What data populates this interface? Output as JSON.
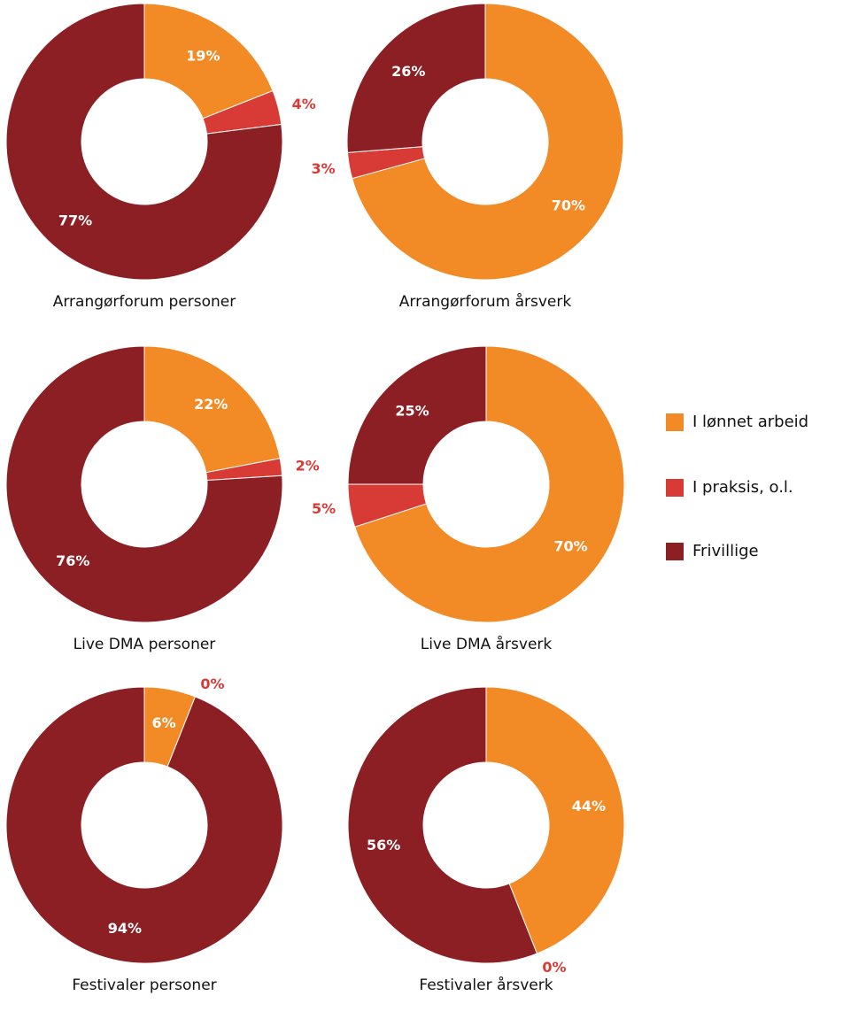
{
  "colors": {
    "I lønnet arbeid": "#f28a25",
    "I praksis, o.l.": "#d83a35",
    "Frivillige": "#8c1f24"
  },
  "chart_data": [
    {
      "type": "pie",
      "title": "Arrangørforum personer",
      "slices": [
        {
          "category": "I lønnet arbeid",
          "value": 19,
          "label": "19%"
        },
        {
          "category": "I praksis, o.l.",
          "value": 4,
          "label": "4%"
        },
        {
          "category": "Frivillige",
          "value": 77,
          "label": "77%"
        }
      ]
    },
    {
      "type": "pie",
      "title": "Arrangørforum årsverk",
      "slices": [
        {
          "category": "I lønnet arbeid",
          "value": 70,
          "label": "70%"
        },
        {
          "category": "I praksis, o.l.",
          "value": 3,
          "label": "3%"
        },
        {
          "category": "Frivillige",
          "value": 26,
          "label": "26%"
        }
      ]
    },
    {
      "type": "pie",
      "title": "Live DMA personer",
      "slices": [
        {
          "category": "I lønnet arbeid",
          "value": 22,
          "label": "22%"
        },
        {
          "category": "I praksis, o.l.",
          "value": 2,
          "label": "2%"
        },
        {
          "category": "Frivillige",
          "value": 76,
          "label": "76%"
        }
      ]
    },
    {
      "type": "pie",
      "title": "Live DMA årsverk",
      "slices": [
        {
          "category": "I lønnet arbeid",
          "value": 70,
          "label": "70%"
        },
        {
          "category": "I praksis, o.l.",
          "value": 5,
          "label": "5%"
        },
        {
          "category": "Frivillige",
          "value": 25,
          "label": "25%"
        }
      ]
    },
    {
      "type": "pie",
      "title": "Festivaler personer",
      "slices": [
        {
          "category": "I lønnet arbeid",
          "value": 6,
          "label": "6%"
        },
        {
          "category": "I praksis, o.l.",
          "value": 0,
          "label": "0%"
        },
        {
          "category": "Frivillige",
          "value": 94,
          "label": "94%"
        }
      ]
    },
    {
      "type": "pie",
      "title": "Festivaler årsverk",
      "slices": [
        {
          "category": "I lønnet arbeid",
          "value": 44,
          "label": "44%"
        },
        {
          "category": "I praksis, o.l.",
          "value": 0,
          "label": "0%"
        },
        {
          "category": "Frivillige",
          "value": 56,
          "label": "56%"
        }
      ]
    }
  ],
  "legend": {
    "position": "right",
    "items": [
      "I lønnet arbeid",
      "I praksis, o.l.",
      "Frivillige"
    ]
  }
}
